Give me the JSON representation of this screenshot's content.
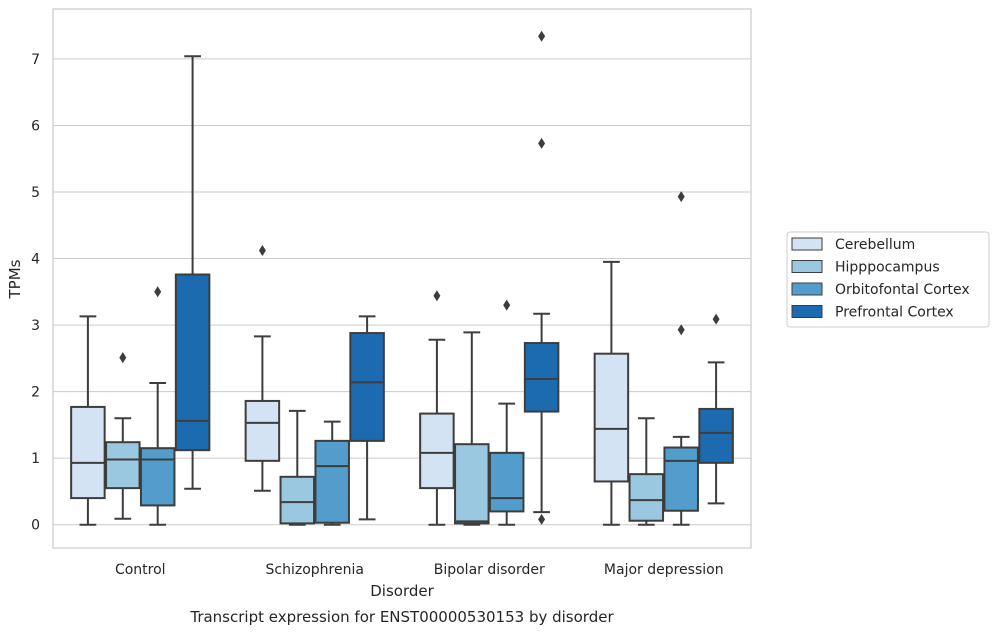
{
  "chart_data": {
    "type": "box",
    "title": "Transcript expression for ENST00000530153 by disorder",
    "xlabel": "Disorder",
    "ylabel": "TPMs",
    "ylim": [
      -0.35,
      7.75
    ],
    "yticks": [
      0,
      1,
      2,
      3,
      4,
      5,
      6,
      7
    ],
    "grid": "horizontal",
    "legend_position": "right",
    "categories": [
      "Control",
      "Schizophrenia",
      "Bipolar disorder",
      "Major depression"
    ],
    "series": [
      {
        "name": "Cerebellum",
        "color": "#d3e3f3",
        "boxes": [
          {
            "whisker_low": 0.0,
            "q1": 0.4,
            "median": 0.93,
            "q3": 1.77,
            "whisker_high": 3.13,
            "outliers": []
          },
          {
            "whisker_low": 0.51,
            "q1": 0.96,
            "median": 1.53,
            "q3": 1.86,
            "whisker_high": 2.83,
            "outliers": [
              4.12
            ]
          },
          {
            "whisker_low": 0.0,
            "q1": 0.55,
            "median": 1.08,
            "q3": 1.67,
            "whisker_high": 2.78,
            "outliers": [
              3.44
            ]
          },
          {
            "whisker_low": 0.0,
            "q1": 0.65,
            "median": 1.44,
            "q3": 2.57,
            "whisker_high": 3.95,
            "outliers": []
          }
        ]
      },
      {
        "name": "Hipppocampus",
        "color": "#9ac8e0",
        "boxes": [
          {
            "whisker_low": 0.09,
            "q1": 0.55,
            "median": 0.98,
            "q3": 1.24,
            "whisker_high": 1.6,
            "outliers": [
              2.51
            ]
          },
          {
            "whisker_low": 0.0,
            "q1": 0.02,
            "median": 0.34,
            "q3": 0.72,
            "whisker_high": 1.71,
            "outliers": []
          },
          {
            "whisker_low": 0.0,
            "q1": 0.02,
            "median": 0.05,
            "q3": 1.21,
            "whisker_high": 2.89,
            "outliers": []
          },
          {
            "whisker_low": 0.0,
            "q1": 0.06,
            "median": 0.37,
            "q3": 0.76,
            "whisker_high": 1.6,
            "outliers": []
          }
        ]
      },
      {
        "name": "Orbitofontal Cortex",
        "color": "#529dcc",
        "boxes": [
          {
            "whisker_low": 0.0,
            "q1": 0.29,
            "median": 0.98,
            "q3": 1.15,
            "whisker_high": 2.13,
            "outliers": [
              3.5
            ]
          },
          {
            "whisker_low": 0.0,
            "q1": 0.03,
            "median": 0.88,
            "q3": 1.26,
            "whisker_high": 1.55,
            "outliers": []
          },
          {
            "whisker_low": 0.0,
            "q1": 0.2,
            "median": 0.4,
            "q3": 1.08,
            "whisker_high": 1.82,
            "outliers": [
              3.3
            ]
          },
          {
            "whisker_low": 0.0,
            "q1": 0.21,
            "median": 0.96,
            "q3": 1.16,
            "whisker_high": 1.32,
            "outliers": [
              2.93,
              4.93
            ]
          }
        ]
      },
      {
        "name": "Prefrontal Cortex",
        "color": "#1c6aaf",
        "boxes": [
          {
            "whisker_low": 0.54,
            "q1": 1.12,
            "median": 1.56,
            "q3": 3.76,
            "whisker_high": 7.04,
            "outliers": []
          },
          {
            "whisker_low": 0.08,
            "q1": 1.26,
            "median": 2.14,
            "q3": 2.88,
            "whisker_high": 3.13,
            "outliers": []
          },
          {
            "whisker_low": 0.19,
            "q1": 1.7,
            "median": 2.19,
            "q3": 2.73,
            "whisker_high": 3.17,
            "outliers": [
              0.08,
              5.73,
              7.34
            ]
          },
          {
            "whisker_low": 0.32,
            "q1": 0.93,
            "median": 1.38,
            "q3": 1.74,
            "whisker_high": 2.44,
            "outliers": [
              3.09
            ]
          }
        ]
      }
    ]
  }
}
